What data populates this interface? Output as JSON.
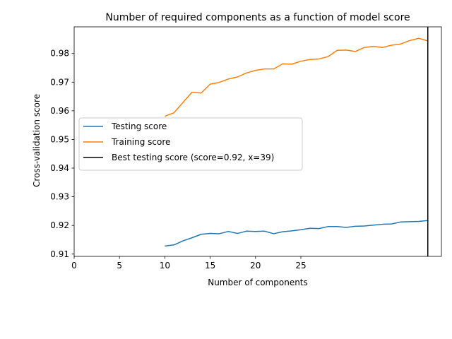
{
  "chart_data": {
    "type": "line",
    "title": "Number of required components as a function of model score",
    "xlabel": "Number of components",
    "ylabel": "Cross-validation score",
    "xlim": [
      0,
      40.5
    ],
    "ylim": [
      0.9092,
      0.9893
    ],
    "xticks": [
      0,
      5,
      10,
      15,
      20,
      25
    ],
    "xtick_labels": [
      "0",
      "5",
      "10",
      "15",
      "20",
      "25"
    ],
    "yticks": [
      0.91,
      0.92,
      0.93,
      0.94,
      0.95,
      0.96,
      0.97,
      0.98
    ],
    "ytick_labels": [
      "0.91",
      "0.92",
      "0.93",
      "0.94",
      "0.95",
      "0.96",
      "0.97",
      "0.98"
    ],
    "grid": false,
    "legend_position": "center-left",
    "x": [
      10,
      11,
      12,
      13,
      14,
      15,
      16,
      17,
      18,
      19,
      20,
      21,
      22,
      23,
      24,
      25,
      26,
      27,
      28,
      29,
      30,
      31,
      32,
      33,
      34,
      35,
      36,
      37,
      38,
      39
    ],
    "series": [
      {
        "name": "Testing score",
        "color": "#1f77b4",
        "values": [
          0.9128,
          0.9132,
          0.9146,
          0.9157,
          0.9169,
          0.9172,
          0.9171,
          0.9179,
          0.9172,
          0.918,
          0.9179,
          0.918,
          0.9171,
          0.9178,
          0.9181,
          0.9185,
          0.919,
          0.9189,
          0.9196,
          0.9196,
          0.9193,
          0.9197,
          0.9198,
          0.9201,
          0.9204,
          0.9205,
          0.9212,
          0.9213,
          0.9214,
          0.9217
        ]
      },
      {
        "name": "Training score",
        "color": "#ff7f0e",
        "values": [
          0.9581,
          0.9593,
          0.9629,
          0.9665,
          0.9662,
          0.9693,
          0.9699,
          0.9711,
          0.9718,
          0.9732,
          0.9741,
          0.9746,
          0.9746,
          0.9764,
          0.9763,
          0.9773,
          0.9779,
          0.9781,
          0.9789,
          0.9811,
          0.9812,
          0.9807,
          0.9821,
          0.9825,
          0.9821,
          0.9829,
          0.9833,
          0.9845,
          0.9853,
          0.9844
        ]
      }
    ],
    "vline": {
      "name": "Best testing score (score=0.92, x=39)",
      "x": 39,
      "color": "#000000"
    }
  }
}
